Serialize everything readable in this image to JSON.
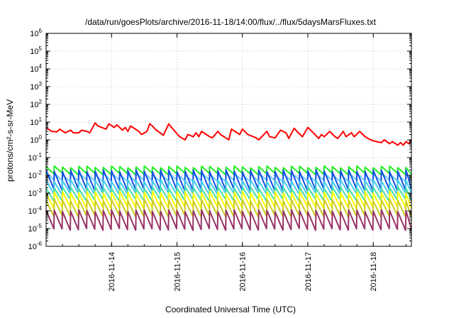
{
  "chart_data": {
    "type": "line",
    "title": "/data/run/goesPlots/archive/2016-11-18/14:00/flux/../flux/5daysMarsFluxes.txt",
    "xlabel": "Coordinated Universal Time (UTC)",
    "ylabel": "protons/cm²-s-sr-MeV",
    "yscale": "log",
    "ylim": [
      1e-06,
      1000000.0
    ],
    "xlim": [
      "2016-11-13 00:00",
      "2016-11-18 14:00"
    ],
    "grid": true,
    "legend": "none",
    "x_ticks": [
      "2016-11-14",
      "2016-11-15",
      "2016-11-16",
      "2016-11-17",
      "2016-11-18"
    ],
    "y_ticks": [
      {
        "value": 1e-06,
        "base": "10",
        "exp": "-6"
      },
      {
        "value": 1e-05,
        "base": "10",
        "exp": "-5"
      },
      {
        "value": 0.0001,
        "base": "10",
        "exp": "-4"
      },
      {
        "value": 0.001,
        "base": "10",
        "exp": "-3"
      },
      {
        "value": 0.01,
        "base": "10",
        "exp": "-2"
      },
      {
        "value": 0.1,
        "base": "10",
        "exp": "-1"
      },
      {
        "value": 1,
        "base": "10",
        "exp": "0"
      },
      {
        "value": 10,
        "base": "10",
        "exp": "1"
      },
      {
        "value": 100,
        "base": "10",
        "exp": "2"
      },
      {
        "value": 1000,
        "base": "10",
        "exp": "3"
      },
      {
        "value": 10000,
        "base": "10",
        "exp": "4"
      },
      {
        "value": 100000,
        "base": "10",
        "exp": "5"
      },
      {
        "value": 1000000,
        "base": "10",
        "exp": "6"
      }
    ],
    "series": [
      {
        "color": "#ff0000",
        "x": [
          "2016-11-13 00:00",
          "2016-11-13 02:00",
          "2016-11-13 04:00",
          "2016-11-13 05:00",
          "2016-11-13 07:00",
          "2016-11-13 09:00",
          "2016-11-13 10:00",
          "2016-11-13 12:00",
          "2016-11-13 13:00",
          "2016-11-13 15:00",
          "2016-11-13 16:00",
          "2016-11-13 18:00",
          "2016-11-13 19:00",
          "2016-11-13 22:00",
          "2016-11-13 23:00",
          "2016-11-14 01:00",
          "2016-11-14 02:00",
          "2016-11-14 04:00",
          "2016-11-14 05:00",
          "2016-11-14 06:00",
          "2016-11-14 07:00",
          "2016-11-14 10:00",
          "2016-11-14 11:00",
          "2016-11-14 13:00",
          "2016-11-14 14:00",
          "2016-11-14 15:00",
          "2016-11-14 16:00",
          "2016-11-14 19:00",
          "2016-11-14 21:00",
          "2016-11-14 22:00",
          "2016-11-15 01:00",
          "2016-11-15 03:00",
          "2016-11-15 04:00",
          "2016-11-15 06:00",
          "2016-11-15 07:00",
          "2016-11-15 08:00",
          "2016-11-15 09:00",
          "2016-11-15 12:00",
          "2016-11-15 13:00",
          "2016-11-15 15:00",
          "2016-11-15 16:00",
          "2016-11-15 19:00",
          "2016-11-15 20:00",
          "2016-11-15 23:00",
          "2016-11-16 00:00",
          "2016-11-16 02:00",
          "2016-11-16 04:00",
          "2016-11-16 05:00",
          "2016-11-16 06:00",
          "2016-11-16 09:00",
          "2016-11-16 10:00",
          "2016-11-16 12:00",
          "2016-11-16 14:00",
          "2016-11-16 16:00",
          "2016-11-16 17:00",
          "2016-11-16 19:00",
          "2016-11-16 20:00",
          "2016-11-16 22:00",
          "2016-11-17 00:00",
          "2016-11-17 02:00",
          "2016-11-17 04:00",
          "2016-11-17 05:00",
          "2016-11-17 06:00",
          "2016-11-17 08:00",
          "2016-11-17 10:00",
          "2016-11-17 11:00",
          "2016-11-17 13:00",
          "2016-11-17 14:00",
          "2016-11-17 16:00",
          "2016-11-17 17:00",
          "2016-11-17 19:00",
          "2016-11-17 21:00",
          "2016-11-17 23:00",
          "2016-11-18 01:00",
          "2016-11-18 03:00",
          "2016-11-18 04:00",
          "2016-11-18 06:00",
          "2016-11-18 07:00",
          "2016-11-18 09:00",
          "2016-11-18 10:00",
          "2016-11-18 11:00",
          "2016-11-18 12:00",
          "2016-11-18 13:00",
          "2016-11-18 14:00"
        ],
        "y": [
          5,
          3,
          2.8,
          4,
          2.5,
          3.5,
          2.5,
          2.5,
          3.5,
          3,
          2.5,
          9,
          6,
          4,
          8,
          5,
          7,
          3.5,
          5,
          3,
          6,
          3,
          2,
          3,
          8,
          6,
          4,
          1.8,
          8,
          5,
          1.5,
          1,
          2,
          1.5,
          2.5,
          1.5,
          3,
          1.5,
          1.3,
          3,
          2,
          1,
          4,
          2,
          4,
          2,
          1.5,
          1.3,
          1,
          3,
          1.5,
          1.3,
          3.5,
          2.5,
          1.2,
          4.5,
          3,
          1.5,
          5,
          2.5,
          1.2,
          2,
          1.5,
          3,
          1.5,
          1.2,
          3,
          1.5,
          2.5,
          1.5,
          3,
          1.5,
          1,
          0.8,
          0.7,
          1,
          0.6,
          0.8,
          0.5,
          0.7,
          0.5,
          0.8,
          0.6,
          1
        ]
      },
      {
        "color": "#22ee22",
        "hi": 0.03,
        "lo": 0.012
      },
      {
        "color": "#66ccff",
        "hi": 0.012,
        "lo": 0.005
      },
      {
        "color": "#1050e0",
        "hi": 0.018,
        "lo": 0.0015
      },
      {
        "color": "#44ccee",
        "hi": 0.005,
        "lo": 0.0009
      },
      {
        "color": "#44ddaa",
        "hi": 0.002,
        "lo": 0.0004
      },
      {
        "color": "#ffff00",
        "hi": 0.0011,
        "lo": 0.00015
      },
      {
        "color": "#cccc22",
        "hi": 0.0004,
        "lo": 5e-05
      },
      {
        "color": "#993366",
        "hi": 0.0001,
        "lo": 9e-06
      }
    ]
  }
}
